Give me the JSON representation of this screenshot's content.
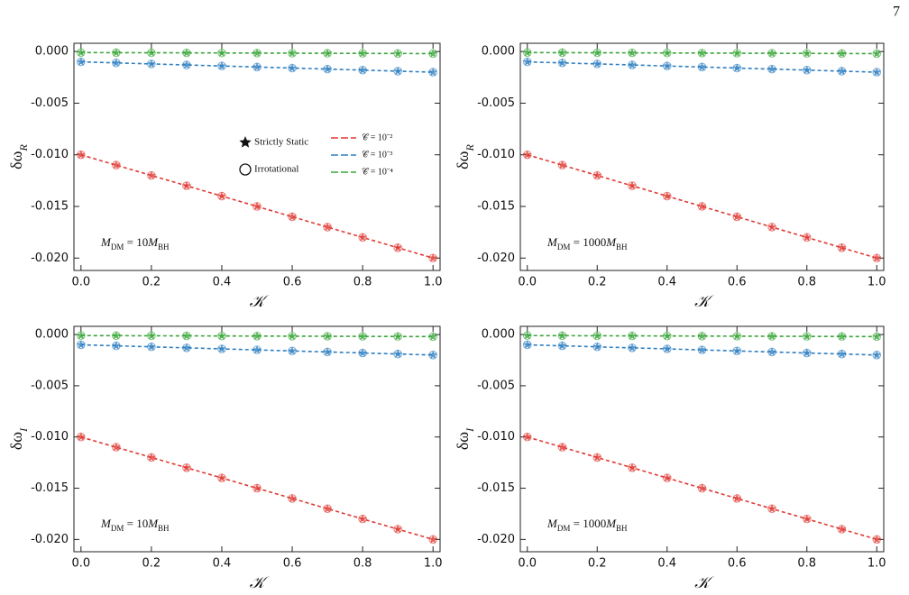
{
  "page_number": "7",
  "chart_data": [
    {
      "type": "line",
      "x": [
        0,
        0.1,
        0.2,
        0.3,
        0.4,
        0.5,
        0.6,
        0.7,
        0.8,
        0.9,
        1
      ],
      "xlim": [
        -0.02,
        1.02
      ],
      "ylim": [
        -0.0212,
        0.0008
      ],
      "xticks": [
        {
          "value": 0,
          "label": "0.0"
        },
        0.2,
        0.4,
        0.6,
        0.8,
        {
          "value": 1,
          "label": "1.0"
        }
      ],
      "yticks": [
        {
          "value": 0,
          "label": "0.000"
        },
        {
          "value": -0.005,
          "label": "-0.005"
        },
        {
          "value": -0.01,
          "label": "-0.010"
        },
        {
          "value": -0.015,
          "label": "-0.015"
        },
        {
          "value": -0.02,
          "label": "-0.020"
        }
      ],
      "xlabel": "𝒦",
      "ylabel": [
        "δω",
        "R"
      ],
      "annotation": [
        "M",
        "DM",
        " = 10",
        "M",
        "BH"
      ],
      "marker_legend": [
        "Strictly Static",
        "Irrotational"
      ],
      "legend_position": "center",
      "series": [
        {
          "name": "𝒞 = 10⁻²",
          "color": "#e03a33",
          "static": [
            -0.01,
            -0.011,
            -0.012,
            -0.013,
            -0.014,
            -0.015,
            -0.016,
            -0.017,
            -0.018,
            -0.019,
            -0.02
          ],
          "irrotational": [
            -0.01,
            -0.011,
            -0.012,
            -0.013,
            -0.014,
            -0.015,
            -0.016,
            -0.017,
            -0.018,
            -0.019,
            -0.02
          ]
        },
        {
          "name": "𝒞 = 10⁻³",
          "color": "#2f7fc1",
          "static": [
            -0.001,
            -0.0011,
            -0.0012,
            -0.0013,
            -0.0014,
            -0.0015,
            -0.0016,
            -0.0017,
            -0.0018,
            -0.0019,
            -0.002
          ],
          "irrotational": [
            -0.001,
            -0.0011,
            -0.0012,
            -0.0013,
            -0.0014,
            -0.0015,
            -0.0016,
            -0.0017,
            -0.0018,
            -0.0019,
            -0.002
          ]
        },
        {
          "name": "𝒞 = 10⁻⁴",
          "color": "#3aa63a",
          "static": [
            -0.0001,
            -0.00011,
            -0.00012,
            -0.00013,
            -0.00014,
            -0.00015,
            -0.00016,
            -0.00017,
            -0.00018,
            -0.00019,
            -0.0002
          ],
          "irrotational": [
            -0.0001,
            -0.00011,
            -0.00012,
            -0.00013,
            -0.00014,
            -0.00015,
            -0.00016,
            -0.00017,
            -0.00018,
            -0.00019,
            -0.0002
          ]
        }
      ]
    },
    {
      "type": "line",
      "x": [
        0,
        0.1,
        0.2,
        0.3,
        0.4,
        0.5,
        0.6,
        0.7,
        0.8,
        0.9,
        1
      ],
      "xlim": [
        -0.02,
        1.02
      ],
      "ylim": [
        -0.0212,
        0.0008
      ],
      "xticks": [
        {
          "value": 0,
          "label": "0.0"
        },
        0.2,
        0.4,
        0.6,
        0.8,
        {
          "value": 1,
          "label": "1.0"
        }
      ],
      "yticks": [
        {
          "value": 0,
          "label": "0.000"
        },
        {
          "value": -0.005,
          "label": "-0.005"
        },
        {
          "value": -0.01,
          "label": "-0.010"
        },
        {
          "value": -0.015,
          "label": "-0.015"
        },
        {
          "value": -0.02,
          "label": "-0.020"
        }
      ],
      "xlabel": "𝒦",
      "ylabel": [
        "δω",
        "R"
      ],
      "annotation": [
        "M",
        "DM",
        " = 1000",
        "M",
        "BH"
      ],
      "series": [
        {
          "color": "#e03a33",
          "static": [
            -0.01,
            -0.011,
            -0.012,
            -0.013,
            -0.014,
            -0.015,
            -0.016,
            -0.017,
            -0.018,
            -0.019,
            -0.02
          ],
          "irrotational": [
            -0.01,
            -0.011,
            -0.012,
            -0.013,
            -0.014,
            -0.015,
            -0.016,
            -0.017,
            -0.018,
            -0.019,
            -0.02
          ]
        },
        {
          "color": "#2f7fc1",
          "static": [
            -0.001,
            -0.0011,
            -0.0012,
            -0.0013,
            -0.0014,
            -0.0015,
            -0.0016,
            -0.0017,
            -0.0018,
            -0.0019,
            -0.002
          ],
          "irrotational": [
            -0.001,
            -0.0011,
            -0.0012,
            -0.0013,
            -0.0014,
            -0.0015,
            -0.0016,
            -0.0017,
            -0.0018,
            -0.0019,
            -0.002
          ]
        },
        {
          "color": "#3aa63a",
          "static": [
            -0.0001,
            -0.00011,
            -0.00012,
            -0.00013,
            -0.00014,
            -0.00015,
            -0.00016,
            -0.00017,
            -0.00018,
            -0.00019,
            -0.0002
          ],
          "irrotational": [
            -0.0001,
            -0.00011,
            -0.00012,
            -0.00013,
            -0.00014,
            -0.00015,
            -0.00016,
            -0.00017,
            -0.00018,
            -0.00019,
            -0.0002
          ]
        }
      ]
    },
    {
      "type": "line",
      "x": [
        0,
        0.1,
        0.2,
        0.3,
        0.4,
        0.5,
        0.6,
        0.7,
        0.8,
        0.9,
        1
      ],
      "xlim": [
        -0.02,
        1.02
      ],
      "ylim": [
        -0.0212,
        0.0008
      ],
      "xticks": [
        {
          "value": 0,
          "label": "0.0"
        },
        0.2,
        0.4,
        0.6,
        0.8,
        {
          "value": 1,
          "label": "1.0"
        }
      ],
      "yticks": [
        {
          "value": 0,
          "label": "0.000"
        },
        {
          "value": -0.005,
          "label": "-0.005"
        },
        {
          "value": -0.01,
          "label": "-0.010"
        },
        {
          "value": -0.015,
          "label": "-0.015"
        },
        {
          "value": -0.02,
          "label": "-0.020"
        }
      ],
      "xlabel": "𝒦",
      "ylabel": [
        "δω",
        "I"
      ],
      "annotation": [
        "M",
        "DM",
        " = 10",
        "M",
        "BH"
      ],
      "series": [
        {
          "color": "#e03a33",
          "static": [
            -0.01,
            -0.011,
            -0.012,
            -0.013,
            -0.014,
            -0.015,
            -0.016,
            -0.017,
            -0.018,
            -0.019,
            -0.02
          ],
          "irrotational": [
            -0.01,
            -0.011,
            -0.012,
            -0.013,
            -0.014,
            -0.015,
            -0.016,
            -0.017,
            -0.018,
            -0.019,
            -0.02
          ]
        },
        {
          "color": "#2f7fc1",
          "static": [
            -0.001,
            -0.0011,
            -0.0012,
            -0.0013,
            -0.0014,
            -0.0015,
            -0.0016,
            -0.0017,
            -0.0018,
            -0.0019,
            -0.002
          ],
          "irrotational": [
            -0.001,
            -0.0011,
            -0.0012,
            -0.0013,
            -0.0014,
            -0.0015,
            -0.0016,
            -0.0017,
            -0.0018,
            -0.0019,
            -0.002
          ]
        },
        {
          "color": "#3aa63a",
          "static": [
            -0.0001,
            -0.00011,
            -0.00012,
            -0.00013,
            -0.00014,
            -0.00015,
            -0.00016,
            -0.00017,
            -0.00018,
            -0.00019,
            -0.0002
          ],
          "irrotational": [
            -0.0001,
            -0.00011,
            -0.00012,
            -0.00013,
            -0.00014,
            -0.00015,
            -0.00016,
            -0.00017,
            -0.00018,
            -0.00019,
            -0.0002
          ]
        }
      ]
    },
    {
      "type": "line",
      "x": [
        0,
        0.1,
        0.2,
        0.3,
        0.4,
        0.5,
        0.6,
        0.7,
        0.8,
        0.9,
        1
      ],
      "xlim": [
        -0.02,
        1.02
      ],
      "ylim": [
        -0.0212,
        0.0008
      ],
      "xticks": [
        {
          "value": 0,
          "label": "0.0"
        },
        0.2,
        0.4,
        0.6,
        0.8,
        {
          "value": 1,
          "label": "1.0"
        }
      ],
      "yticks": [
        {
          "value": 0,
          "label": "0.000"
        },
        {
          "value": -0.005,
          "label": "-0.005"
        },
        {
          "value": -0.01,
          "label": "-0.010"
        },
        {
          "value": -0.015,
          "label": "-0.015"
        },
        {
          "value": -0.02,
          "label": "-0.020"
        }
      ],
      "xlabel": "𝒦",
      "ylabel": [
        "δω",
        "I"
      ],
      "annotation": [
        "M",
        "DM",
        " = 1000",
        "M",
        "BH"
      ],
      "series": [
        {
          "color": "#e03a33",
          "static": [
            -0.01,
            -0.011,
            -0.012,
            -0.013,
            -0.014,
            -0.015,
            -0.016,
            -0.017,
            -0.018,
            -0.019,
            -0.02
          ],
          "irrotational": [
            -0.01,
            -0.011,
            -0.012,
            -0.013,
            -0.014,
            -0.015,
            -0.016,
            -0.017,
            -0.018,
            -0.019,
            -0.02
          ]
        },
        {
          "color": "#2f7fc1",
          "static": [
            -0.001,
            -0.0011,
            -0.0012,
            -0.0013,
            -0.0014,
            -0.0015,
            -0.0016,
            -0.0017,
            -0.0018,
            -0.0019,
            -0.002
          ],
          "irrotational": [
            -0.001,
            -0.0011,
            -0.0012,
            -0.0013,
            -0.0014,
            -0.0015,
            -0.0016,
            -0.0017,
            -0.0018,
            -0.0019,
            -0.002
          ]
        },
        {
          "color": "#3aa63a",
          "static": [
            -0.0001,
            -0.00011,
            -0.00012,
            -0.00013,
            -0.00014,
            -0.00015,
            -0.00016,
            -0.00017,
            -0.00018,
            -0.00019,
            -0.0002
          ],
          "irrotational": [
            -0.0001,
            -0.00011,
            -0.00012,
            -0.00013,
            -0.00014,
            -0.00015,
            -0.00016,
            -0.00017,
            -0.00018,
            -0.00019,
            -0.0002
          ]
        }
      ]
    }
  ]
}
